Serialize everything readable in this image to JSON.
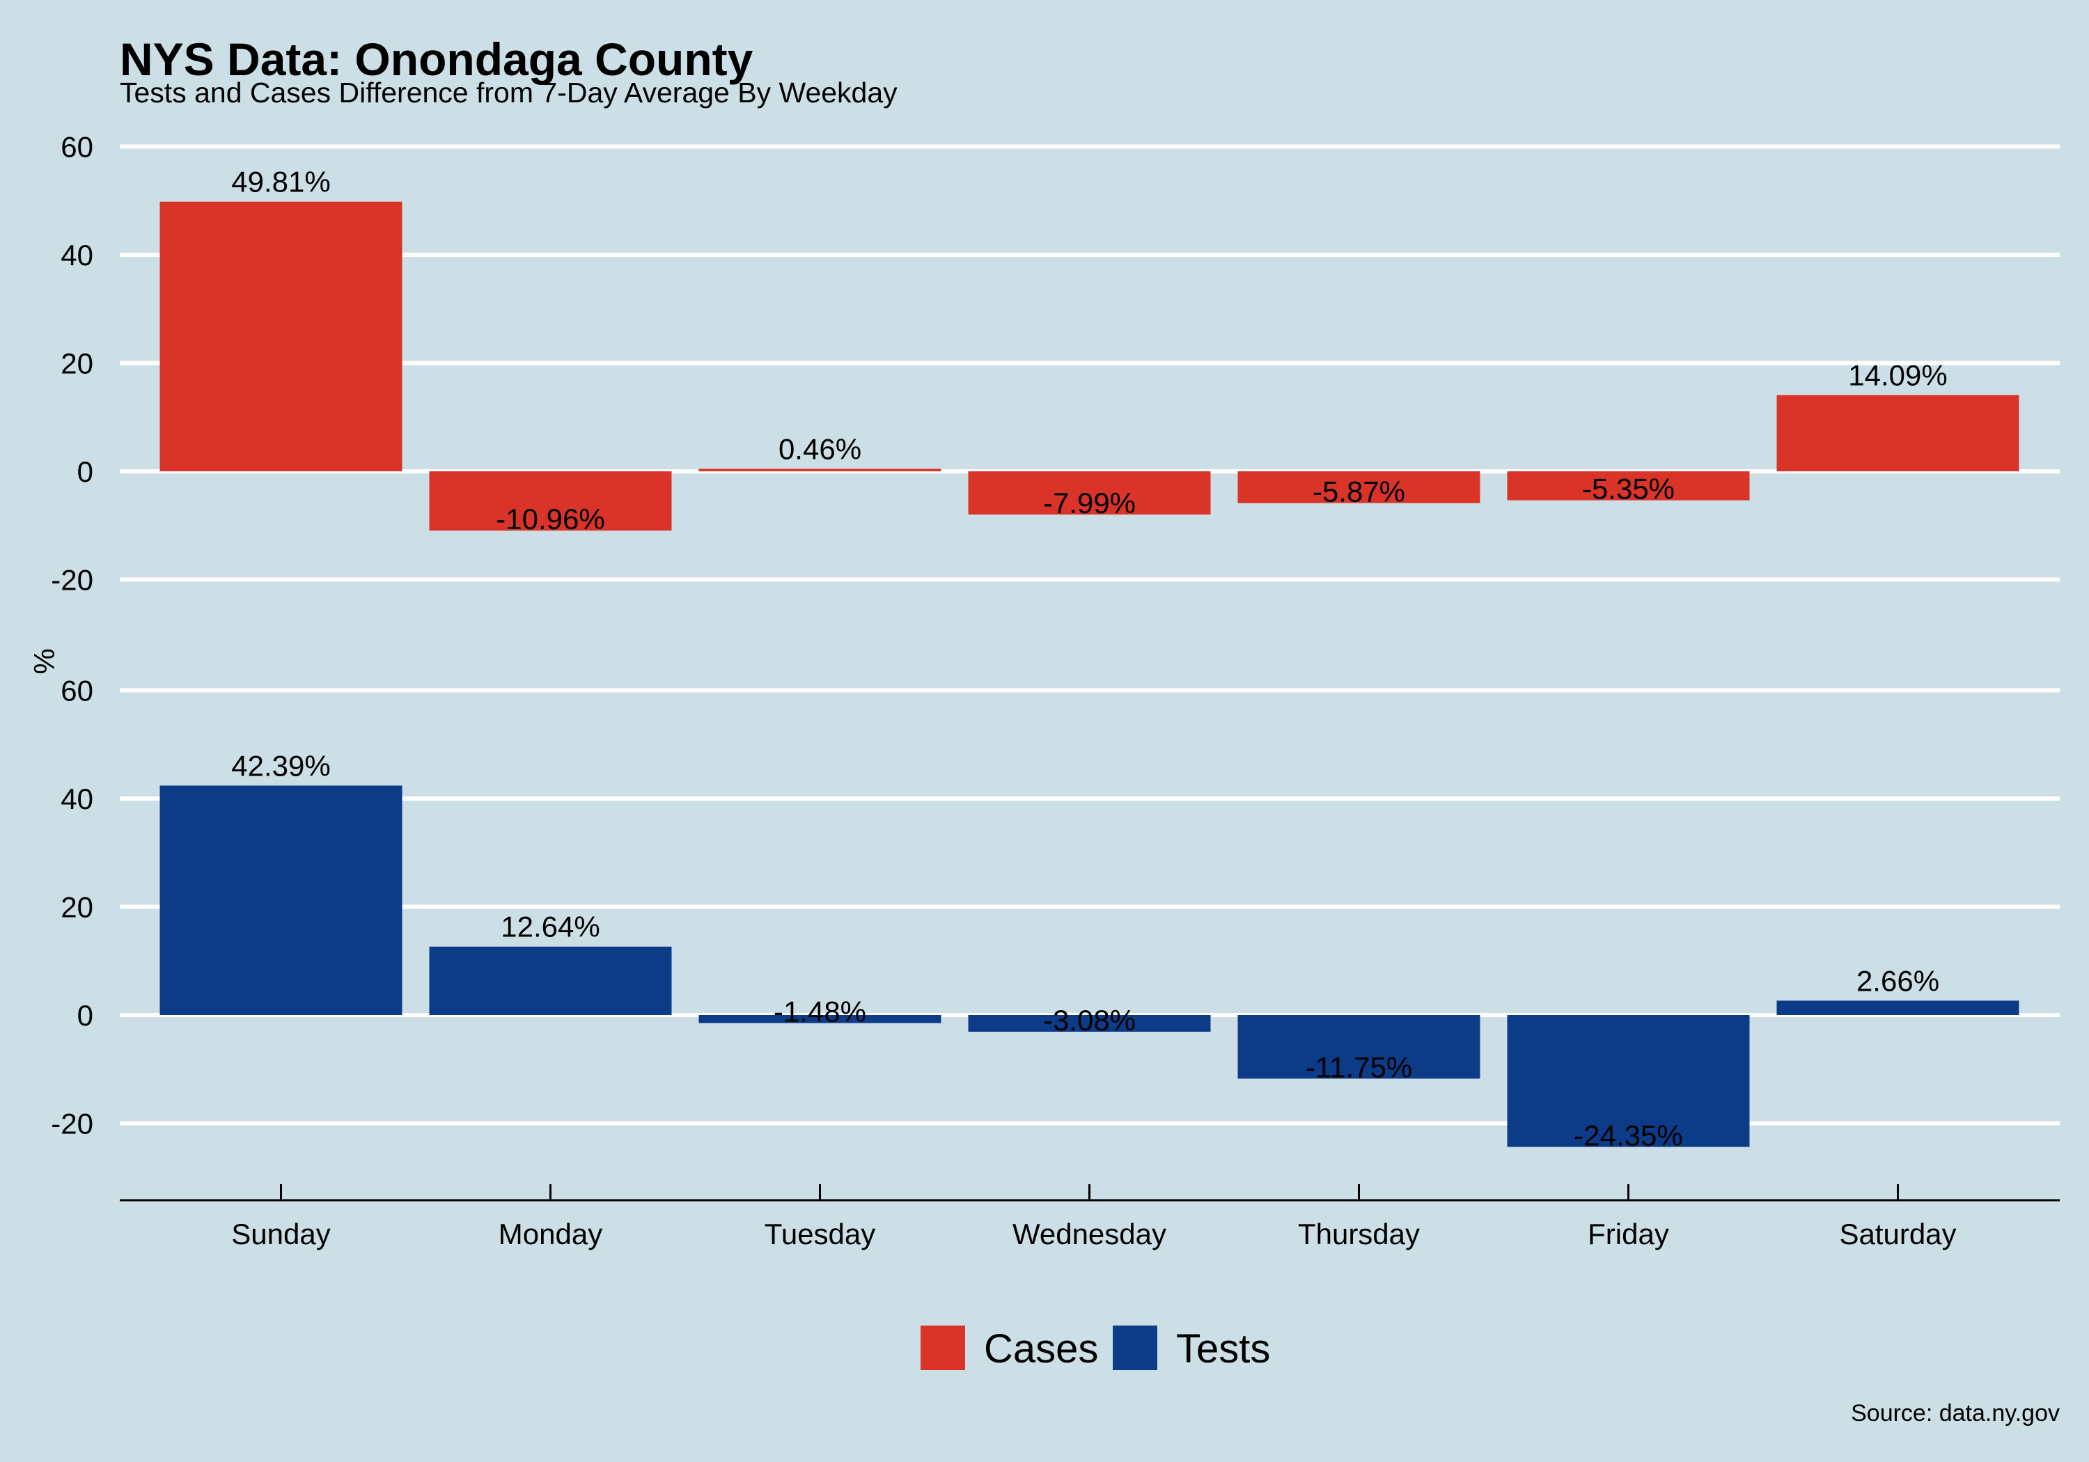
{
  "chart_data": {
    "type": "bar",
    "title": "NYS Data: Onondaga County",
    "subtitle": "Tests and Cases Difference from 7-Day Average By Weekday",
    "ylabel": "%",
    "xlabel": "",
    "caption": "Source: data.ny.gov",
    "categories": [
      "Sunday",
      "Monday",
      "Tuesday",
      "Wednesday",
      "Thursday",
      "Friday",
      "Saturday"
    ],
    "yticks": [
      60,
      40,
      20,
      0,
      -20
    ],
    "legend_position": "bottom",
    "grid": true,
    "series": [
      {
        "name": "Cases",
        "color": "#d93427",
        "values": [
          49.81,
          -10.96,
          0.46,
          -7.99,
          -5.87,
          -5.35,
          14.09
        ],
        "labels": [
          "49.81%",
          "-10.96%",
          "0.46%",
          "-7.99%",
          "-5.87%",
          "-5.35%",
          "14.09%"
        ],
        "ylim": [
          -20,
          60
        ]
      },
      {
        "name": "Tests",
        "color": "#0c3b87",
        "values": [
          42.39,
          12.64,
          -1.48,
          -3.08,
          -11.75,
          -24.35,
          2.66
        ],
        "labels": [
          "42.39%",
          "12.64%",
          "-1.48%",
          "-3.08%",
          "-11.75%",
          "-24.35%",
          "2.66%"
        ],
        "ylim": [
          -34.5,
          60
        ]
      }
    ]
  }
}
